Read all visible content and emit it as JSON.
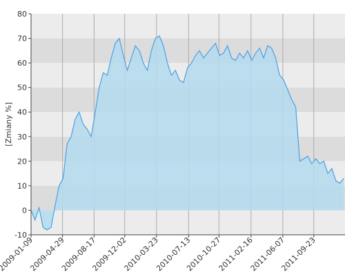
{
  "chart_data": {
    "type": "area",
    "y_label": "[Zmiany %]",
    "x": [
      "2009-01-09",
      "2009-01-23",
      "2009-02-06",
      "2009-02-20",
      "2009-03-06",
      "2009-03-20",
      "2009-04-03",
      "2009-04-17",
      "2009-05-01",
      "2009-05-15",
      "2009-05-29",
      "2009-06-12",
      "2009-06-26",
      "2009-07-10",
      "2009-07-24",
      "2009-08-07",
      "2009-08-21",
      "2009-09-04",
      "2009-09-18",
      "2009-10-02",
      "2009-10-16",
      "2009-10-30",
      "2009-11-13",
      "2009-11-27",
      "2009-12-11",
      "2009-12-25",
      "2010-01-08",
      "2010-01-22",
      "2010-02-05",
      "2010-02-19",
      "2010-03-05",
      "2010-03-19",
      "2010-04-02",
      "2010-04-16",
      "2010-04-30",
      "2010-05-14",
      "2010-05-28",
      "2010-06-11",
      "2010-06-25",
      "2010-07-09",
      "2010-07-23",
      "2010-08-06",
      "2010-08-20",
      "2010-09-03",
      "2010-09-17",
      "2010-10-01",
      "2010-10-15",
      "2010-10-29",
      "2010-11-12",
      "2010-11-26",
      "2010-12-10",
      "2010-12-24",
      "2011-01-07",
      "2011-01-21",
      "2011-02-04",
      "2011-02-18",
      "2011-03-04",
      "2011-03-18",
      "2011-04-01",
      "2011-04-15",
      "2011-04-29",
      "2011-05-13",
      "2011-05-27",
      "2011-06-10",
      "2011-06-24",
      "2011-07-08",
      "2011-07-22",
      "2011-08-05",
      "2011-08-19",
      "2011-09-02",
      "2011-09-16",
      "2011-09-30",
      "2011-10-14",
      "2011-10-28",
      "2011-11-11",
      "2011-11-25",
      "2011-12-09",
      "2011-12-23",
      "2012-01-06"
    ],
    "values": [
      0,
      -4,
      1,
      -7,
      -8,
      -7,
      2,
      10,
      13,
      27,
      30,
      37,
      40,
      35,
      33,
      30,
      40,
      50,
      56,
      55,
      62,
      68,
      70,
      63,
      57,
      62,
      67,
      65,
      60,
      57,
      65,
      70,
      71,
      67,
      60,
      55,
      57,
      53,
      52,
      58,
      60,
      63,
      65,
      62,
      64,
      66,
      68,
      63,
      64,
      67,
      62,
      61,
      64,
      62,
      65,
      61,
      64,
      66,
      62,
      67,
      66,
      62,
      55,
      53,
      49,
      45,
      42,
      20,
      21,
      22,
      19,
      21,
      19,
      20,
      15,
      17,
      12,
      11,
      13
    ],
    "line_color": "#4a9fe6",
    "fill_color": "#b3dbee",
    "xlim": [
      "2009-01-09",
      "2012-01-10"
    ],
    "xticks": [
      "2009-01-09",
      "2009-04-29",
      "2009-08-17",
      "2009-12-02",
      "2010-03-23",
      "2010-07-13",
      "2010-10-27",
      "2011-02-16",
      "2011-06-07",
      "2011-09-23"
    ],
    "ylim": [
      -10,
      80
    ],
    "yticks": [
      -10,
      0,
      10,
      20,
      30,
      40,
      50,
      60,
      70,
      80
    ],
    "grid": true
  }
}
